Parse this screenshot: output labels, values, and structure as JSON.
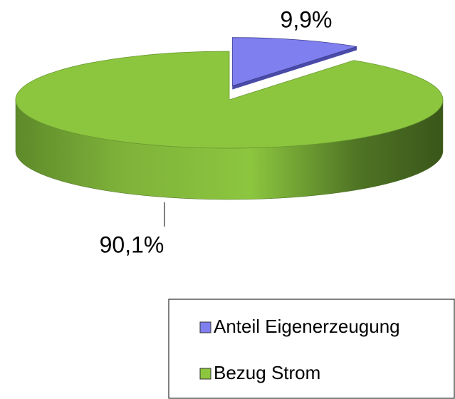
{
  "chart_data": {
    "type": "pie",
    "categories": [
      "Anteil Eigenerzeugung",
      "Bezug Strom"
    ],
    "values": [
      9.9,
      90.1
    ],
    "value_labels": [
      "9,9%",
      "90,1%"
    ],
    "colors": [
      "#7f7ff0",
      "#8cc63f"
    ],
    "legend": "bottom-right"
  }
}
